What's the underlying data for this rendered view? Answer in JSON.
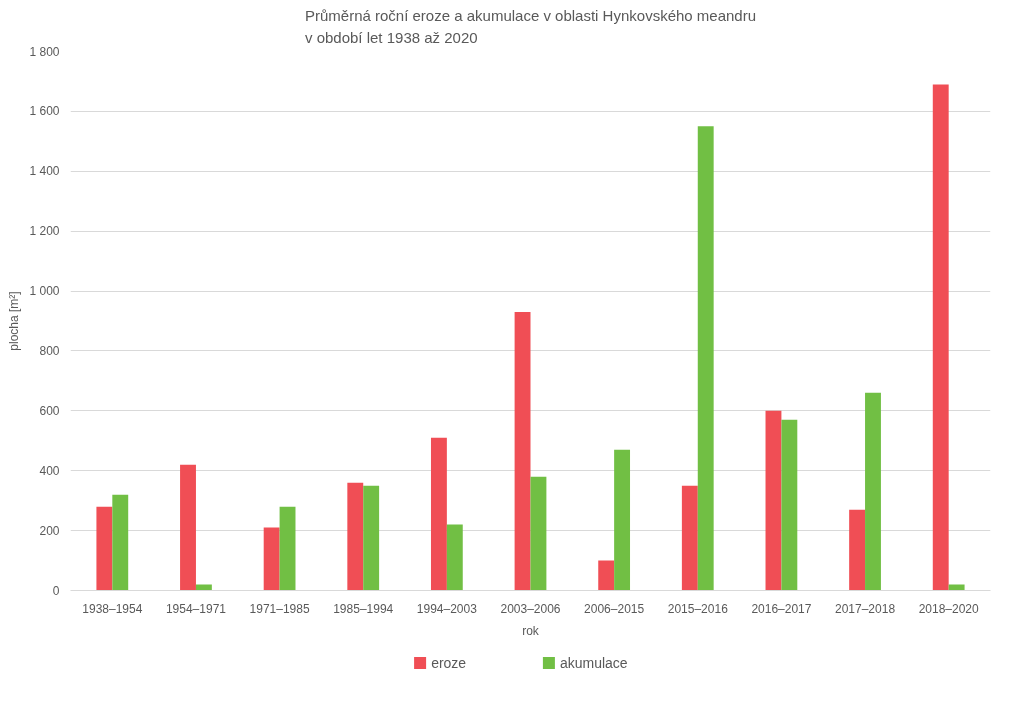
{
  "chart_data": {
    "type": "bar",
    "title": "Průměrná roční eroze a akumulace v oblasti Hynkovského meandru\nv období let 1938 až 2020",
    "xlabel": "rok",
    "ylabel": "plocha [m²]",
    "categories": [
      "1938–1954",
      "1954–1971",
      "1971–1985",
      "1985–1994",
      "1994–2003",
      "2003–2006",
      "2006–2015",
      "2015–2016",
      "2016–2017",
      "2017–2018",
      "2018–2020"
    ],
    "series": [
      {
        "name": "eroze",
        "color": "#f04e55",
        "values": [
          280,
          420,
          210,
          360,
          510,
          930,
          100,
          350,
          600,
          270,
          1690
        ]
      },
      {
        "name": "akumulace",
        "color": "#71bf44",
        "values": [
          320,
          20,
          280,
          350,
          220,
          380,
          470,
          1550,
          570,
          660,
          20
        ]
      }
    ],
    "ylim": [
      0,
      1800
    ],
    "yticks": [
      0,
      200,
      400,
      600,
      800,
      {
        "value": 1000,
        "label": "1 000"
      },
      {
        "value": 1200,
        "label": "1 200"
      },
      {
        "value": 1400,
        "label": "1 400"
      },
      {
        "value": 1600,
        "label": "1 600"
      },
      {
        "value": 1800,
        "label": "1 800"
      }
    ],
    "grid": "y",
    "legend": "bottom"
  }
}
